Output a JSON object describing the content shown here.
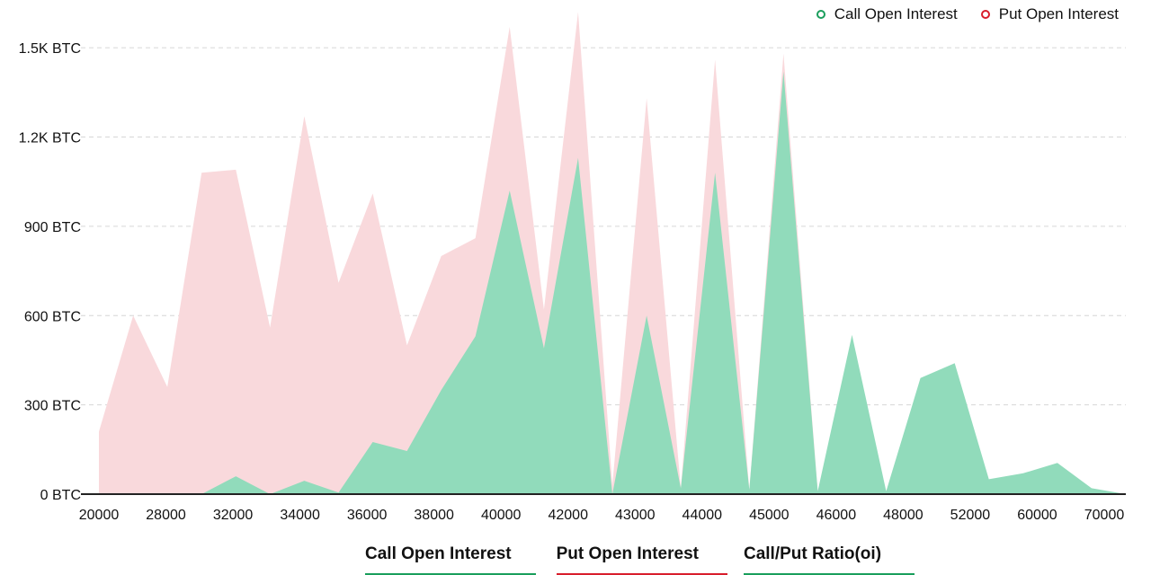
{
  "legend": {
    "call_label": "Call Open Interest",
    "put_label": "Put  Open Interest",
    "call_color": "#1a9e5c",
    "put_color": "#d81e2c"
  },
  "tabs": [
    {
      "label": "Call Open Interest",
      "color": "#1a9e5c"
    },
    {
      "label": "Put Open Interest",
      "color": "#d81e2c"
    },
    {
      "label": "Call/Put Ratio(oi)",
      "color": "#1a9e5c"
    }
  ],
  "chart_data": {
    "type": "area",
    "y_unit": "BTC",
    "ylim": [
      0,
      1600
    ],
    "y_ticks": [
      "0 BTC",
      "300 BTC",
      "600 BTC",
      "900 BTC",
      "1.2K BTC",
      "1.5K BTC"
    ],
    "y_tick_values": [
      0,
      300,
      600,
      900,
      1200,
      1500
    ],
    "x_labels": [
      "20000",
      "28000",
      "32000",
      "34000",
      "36000",
      "38000",
      "40000",
      "42000",
      "43000",
      "44000",
      "45000",
      "46000",
      "48000",
      "52000",
      "60000",
      "70000"
    ],
    "grid": "horizontal-dashed",
    "legend_position": "top-right",
    "series": [
      {
        "name": "Put  Open Interest",
        "color": "#f9d9dc",
        "values": [
          210,
          600,
          360,
          1080,
          1090,
          560,
          1270,
          710,
          1010,
          500,
          800,
          860,
          1570,
          620,
          1620,
          30,
          1330,
          20,
          1460,
          15,
          1480,
          10,
          0,
          0,
          0,
          0,
          0,
          0,
          0,
          0,
          0
        ]
      },
      {
        "name": "Call Open Interest",
        "color": "#91dbbb",
        "values": [
          0,
          0,
          0,
          0,
          60,
          0,
          45,
          5,
          175,
          145,
          350,
          530,
          1020,
          490,
          1130,
          0,
          600,
          20,
          1080,
          15,
          1420,
          10,
          535,
          10,
          390,
          440,
          50,
          70,
          105,
          20,
          0
        ]
      }
    ]
  }
}
